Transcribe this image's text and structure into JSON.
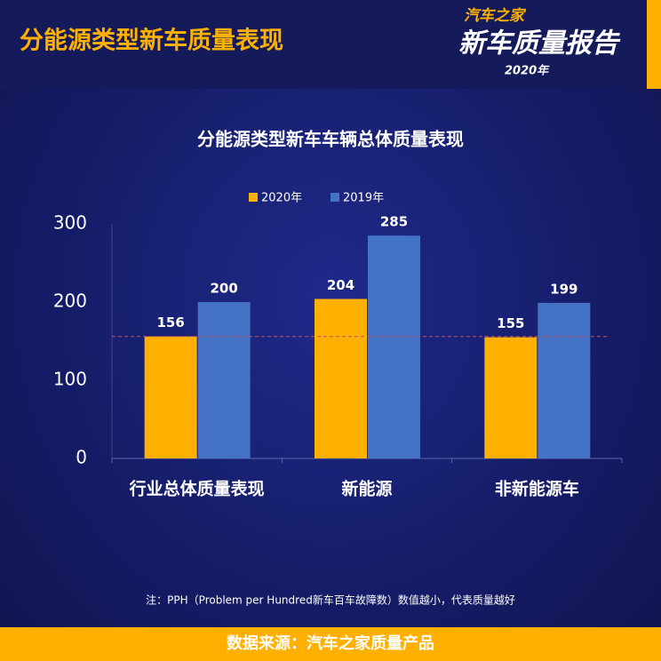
{
  "header": {
    "title": "分能源类型新车质量表现",
    "logo_top": "汽车之家",
    "logo_main": "新车质量报告",
    "logo_year": "2020年"
  },
  "chart_data": {
    "type": "bar",
    "title": "分能源类型新车车辆总体质量表现",
    "categories": [
      "行业总体质量表现",
      "新能源",
      "非新能源车"
    ],
    "series": [
      {
        "name": "2020年",
        "color": "#ffb000",
        "values": [
          156,
          204,
          155
        ]
      },
      {
        "name": "2019年",
        "color": "#4472c4",
        "values": [
          200,
          285,
          199
        ]
      }
    ],
    "ylim": [
      0,
      300
    ],
    "yticks": [
      0,
      100,
      200,
      300
    ],
    "reference_line": {
      "value": 156,
      "color": "#c0506a"
    },
    "legend": "top",
    "note": "注：PPH（Problem per Hundred新车百车故障数）数值越小，代表质量越好"
  },
  "footer": {
    "source": "数据来源：汽车之家质量产品"
  }
}
